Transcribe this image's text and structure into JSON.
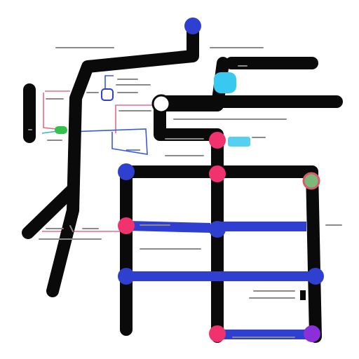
{
  "colors": {
    "line": "#0a0a0a",
    "blue": "#2f3fd0",
    "pink": "#f0326e",
    "cyan": "#38c8f0",
    "green": "#33c24d",
    "purple": "#8b2fd8",
    "red": "#d83a3a",
    "thin_pink": "#e86a8a",
    "thin_blue": "#3a5ad8",
    "thin_cyan": "#2fb4d8",
    "label": "#8a8a8a"
  },
  "icons": {
    "top_node": "blue-circle-icon",
    "right_node_top": "cyan-pin-icon",
    "center_node": "dark-circle-icon",
    "pink_top": "pink-pin-icon",
    "pink_mid": "pink-arrow-icon",
    "blue_left_top": "blue-pin-icon",
    "blue_center": "blue-arrow-icon",
    "pink_left_mid": "pink-pin-icon",
    "blue_left_bottom": "blue-circle-icon",
    "blue_right_bottom": "blue-pin-icon",
    "pink_bottom": "pink-pin-icon",
    "purple_bottom": "purple-pin-icon",
    "green_tag": "green-tag-icon",
    "multicolor": "multicolor-badge-icon",
    "blue_lock": "blue-lock-icon",
    "small_pin": "small-pin-icon"
  }
}
